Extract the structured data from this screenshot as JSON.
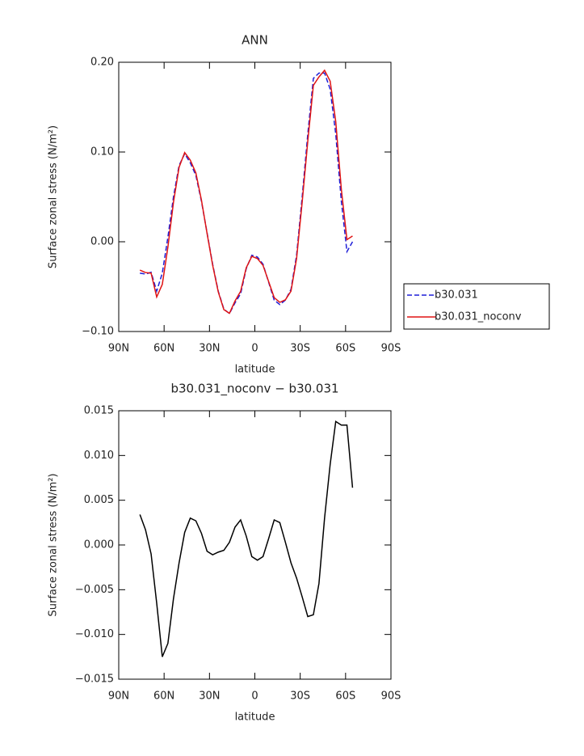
{
  "chart_data": [
    {
      "type": "line",
      "title": "ANN",
      "xlabel": "latitude",
      "ylabel": "Surface zonal stress (N/m²)",
      "x": [
        76,
        72.3,
        68.6,
        64.9,
        61.2,
        57.5,
        53.8,
        50.1,
        46.4,
        42.7,
        39.0,
        35.3,
        31.6,
        27.9,
        24.2,
        20.5,
        16.8,
        13.1,
        9.4,
        5.7,
        2.0,
        -1.7,
        -5.4,
        -9.1,
        -12.8,
        -16.5,
        -20.2,
        -23.9,
        -27.6,
        -31.3,
        -35.0,
        -38.7,
        -42.4,
        -46.1,
        -49.8,
        -53.5,
        -57.2,
        -60.9,
        -64.6
      ],
      "series": [
        {
          "name": "b30.031",
          "color": "#1f1fd8",
          "dash": true,
          "values": [
            -0.035,
            -0.036,
            -0.034,
            -0.055,
            -0.035,
            0.005,
            0.05,
            0.085,
            0.098,
            0.088,
            0.074,
            0.045,
            0.01,
            -0.025,
            -0.055,
            -0.075,
            -0.08,
            -0.068,
            -0.058,
            -0.03,
            -0.015,
            -0.017,
            -0.025,
            -0.045,
            -0.065,
            -0.07,
            -0.065,
            -0.053,
            -0.015,
            0.05,
            0.12,
            0.182,
            0.188,
            0.188,
            0.17,
            0.12,
            0.045,
            -0.011,
            0.0
          ]
        },
        {
          "name": "b30.031_noconv",
          "color": "#e01414",
          "dash": false,
          "values": [
            -0.0316,
            -0.0343,
            -0.035,
            -0.0615,
            -0.0475,
            -0.006,
            0.044,
            0.083,
            0.0994,
            0.091,
            0.0767,
            0.0463,
            0.0093,
            -0.0261,
            -0.0558,
            -0.0756,
            -0.0797,
            -0.066,
            -0.0552,
            -0.029,
            -0.0163,
            -0.0187,
            -0.0263,
            -0.0443,
            -0.0622,
            -0.0675,
            -0.0647,
            -0.055,
            -0.0187,
            0.0442,
            0.112,
            0.1742,
            0.1837,
            0.191,
            0.179,
            0.1338,
            0.0584,
            0.0024,
            0.0064
          ]
        }
      ],
      "xlim": [
        90,
        -90
      ],
      "xticks": [
        {
          "value": 90,
          "label": "90N"
        },
        {
          "value": 60,
          "label": "60N"
        },
        {
          "value": 30,
          "label": "30N"
        },
        0,
        {
          "value": -30,
          "label": "30S"
        },
        {
          "value": -60,
          "label": "60S"
        },
        {
          "value": -90,
          "label": "90S"
        }
      ],
      "ylim": [
        -0.1,
        0.2
      ],
      "yticks": [
        {
          "value": -0.1,
          "label": "−0.10"
        },
        {
          "value": 0,
          "label": "0.00"
        },
        {
          "value": 0.1,
          "label": "0.10"
        },
        {
          "value": 0.2,
          "label": "0.20"
        }
      ],
      "legend": "right"
    },
    {
      "type": "line",
      "title": "b30.031_noconv − b30.031",
      "xlabel": "latitude",
      "ylabel": "Surface zonal stress (N/m²)",
      "x": [
        76,
        72.3,
        68.6,
        64.9,
        61.2,
        57.5,
        53.8,
        50.1,
        46.4,
        42.7,
        39.0,
        35.3,
        31.6,
        27.9,
        24.2,
        20.5,
        16.8,
        13.1,
        9.4,
        5.7,
        2.0,
        -1.7,
        -5.4,
        -9.1,
        -12.8,
        -16.5,
        -20.2,
        -23.9,
        -27.6,
        -31.3,
        -35.0,
        -38.7,
        -42.4,
        -46.1,
        -49.8,
        -53.5,
        -57.2,
        -60.9,
        -64.6
      ],
      "values": [
        0.0034,
        0.0017,
        -0.001,
        -0.0065,
        -0.0125,
        -0.011,
        -0.006,
        -0.002,
        0.0014,
        0.003,
        0.0027,
        0.0013,
        -0.0007,
        -0.0011,
        -0.0008,
        -0.0006,
        0.0003,
        0.002,
        0.0028,
        0.001,
        -0.0013,
        -0.0017,
        -0.0013,
        0.0007,
        0.0028,
        0.0025,
        0.0003,
        -0.002,
        -0.0037,
        -0.0058,
        -0.008,
        -0.0078,
        -0.0043,
        0.003,
        0.009,
        0.0138,
        0.0134,
        0.0134,
        0.0064
      ],
      "color": "#000000",
      "xlim": [
        90,
        -90
      ],
      "xticks": [
        {
          "value": 90,
          "label": "90N"
        },
        {
          "value": 60,
          "label": "60N"
        },
        {
          "value": 30,
          "label": "30N"
        },
        0,
        {
          "value": -30,
          "label": "30S"
        },
        {
          "value": -60,
          "label": "60S"
        },
        {
          "value": -90,
          "label": "90S"
        }
      ],
      "ylim": [
        -0.015,
        0.015
      ],
      "yticks": [
        {
          "value": -0.015,
          "label": "−0.015"
        },
        {
          "value": -0.01,
          "label": "−0.010"
        },
        {
          "value": -0.005,
          "label": "−0.005"
        },
        {
          "value": 0,
          "label": "0.000"
        },
        {
          "value": 0.005,
          "label": "0.005"
        },
        {
          "value": 0.01,
          "label": "0.010"
        },
        {
          "value": 0.015,
          "label": "0.015"
        }
      ]
    }
  ]
}
